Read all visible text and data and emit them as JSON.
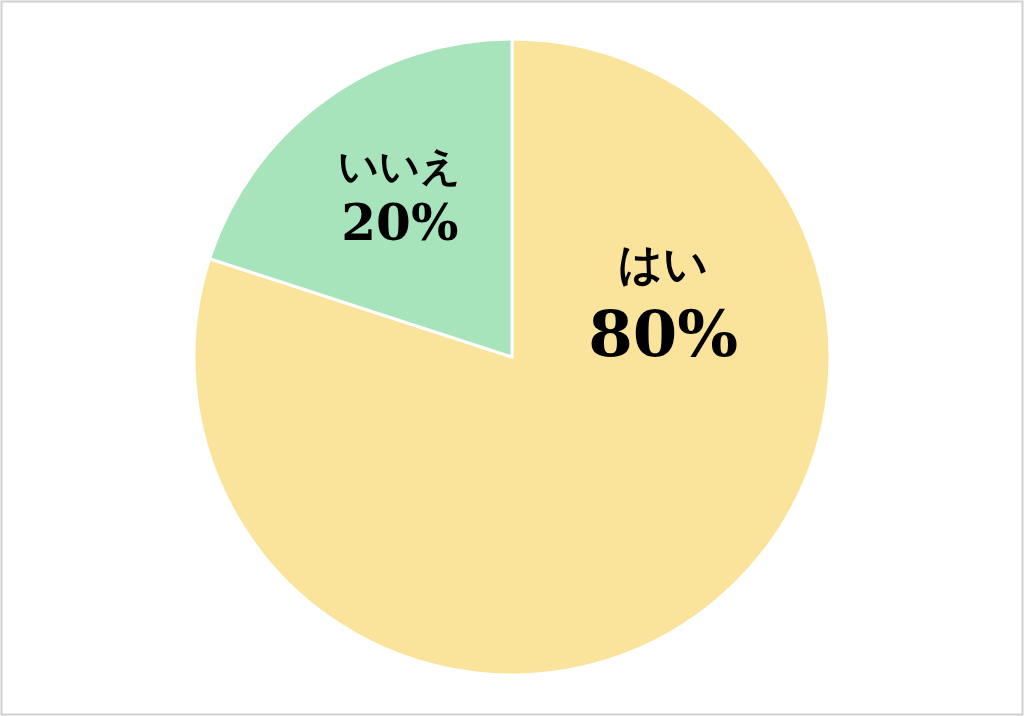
{
  "chart_data": {
    "type": "pie",
    "categories": [
      "はい",
      "いいえ"
    ],
    "values": [
      80,
      20
    ],
    "colors": [
      "#fae39b",
      "#a8e4bb"
    ],
    "value_labels": [
      "80%",
      "20%"
    ]
  }
}
